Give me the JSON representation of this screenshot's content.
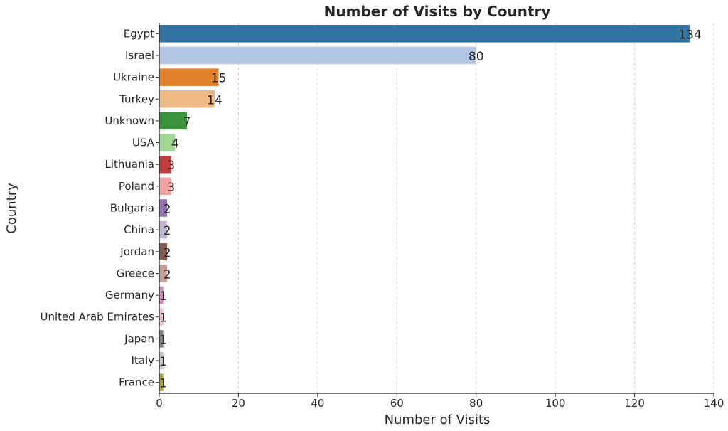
{
  "chart_data": {
    "type": "bar",
    "orientation": "horizontal",
    "title": "Number of Visits by Country",
    "xlabel": "Number of Visits",
    "ylabel": "Country",
    "xlim": [
      0,
      140
    ],
    "xticks": [
      0,
      20,
      40,
      60,
      80,
      100,
      120,
      140
    ],
    "grid": "x-dashed",
    "categories": [
      "Egypt",
      "Israel",
      "Ukraine",
      "Turkey",
      "Unknown",
      "USA",
      "Lithuania",
      "Poland",
      "Bulgaria",
      "China",
      "Jordan",
      "Greece",
      "Germany",
      "United Arab Emirates",
      "Japan",
      "Italy",
      "France"
    ],
    "values": [
      134,
      80,
      15,
      14,
      7,
      4,
      3,
      3,
      2,
      2,
      2,
      2,
      1,
      1,
      1,
      1,
      1
    ],
    "colors": [
      "#3274a1",
      "#b3c6e3",
      "#e1812c",
      "#f0ba86",
      "#3a923a",
      "#a2d895",
      "#c03d3e",
      "#f0a3a3",
      "#9372b2",
      "#c5b4d2",
      "#845b53",
      "#c39f98",
      "#d684bd",
      "#f0bfd9",
      "#7f7f7f",
      "#c7c7c7",
      "#a9aa35"
    ]
  }
}
